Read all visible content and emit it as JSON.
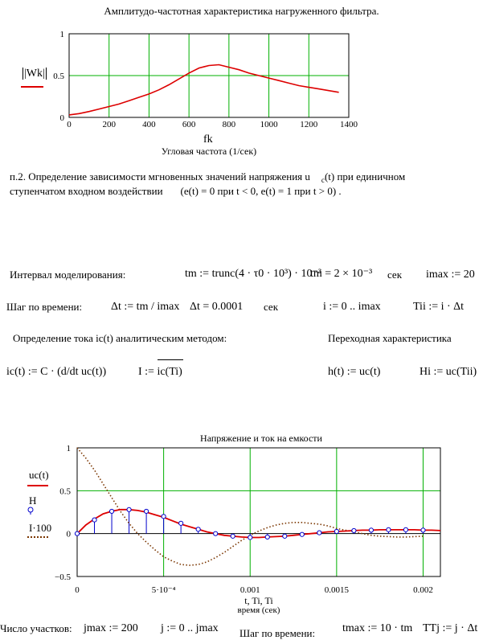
{
  "chart1": {
    "title": "Амплитудо-частотная характеристика нагруженного фильтра.",
    "legend_label": "|Wk|",
    "x_axis_symbol": "fk",
    "xlabel": "Угловая частота (1/сек)",
    "xticks": [
      "0",
      "200",
      "400",
      "600",
      "800",
      "1000",
      "1200",
      "1400"
    ],
    "yticks": [
      "0",
      "0.5",
      "1"
    ]
  },
  "section": {
    "line1": "п.2. Определение зависимости мгновенных значений напряжения u",
    "line1_sub": "c",
    "line1_tail": "(t)  при единичном",
    "line2": "ступенчатом входном воздействии",
    "line2_tail": "(e(t) = 0  при t < 0, e(t) = 1 при t > 0)  ."
  },
  "labels": {
    "interval": "Интервал моделирования:",
    "step": "Шаг по времени:",
    "current_method": "Определение тока ic(t) аналитическим методом:",
    "transient": "Переходная характеристика",
    "sec": "сек",
    "sec2": "сек",
    "parts": "Число участков:",
    "step2": "Шаг по времени:"
  },
  "formulas": {
    "tm_def": "tm := trunc(4 · τ0 · 10³) · 10⁻³",
    "tm_val": "tm = 2 × 10⁻³",
    "imax": "imax := 20",
    "dt_def": "Δt := tm / imax",
    "dt_val": "Δt = 0.0001",
    "i_range": "i := 0 .. imax",
    "ti": "Tii := i · Δt",
    "ic_def": "ic(t) := C · (d/dt uc(t))",
    "i_vec": "I := ic(Ti)",
    "h_def": "h(t) := uc(t)",
    "h_vec": "Hi := uc(Tii)",
    "jmax": "jmax := 200",
    "j_range": "j := 0 .. jmax",
    "tmax": "tmax := 10 · tm",
    "tt": "TTj := j · Δt"
  },
  "chart2": {
    "title": "Напряжение и ток на емкости",
    "legend": [
      "uc(t)",
      "H",
      "I·100"
    ],
    "xticks": [
      "0",
      "5·10⁻⁴",
      "0.001",
      "0.0015",
      "0.002"
    ],
    "yticks": [
      "−0.5",
      "0",
      "0.5",
      "1"
    ],
    "x_axis_symbol": "t, Ti, Ti",
    "xlabel": "время (сек)"
  },
  "chart_data": [
    {
      "type": "line",
      "title": "Амплитудо-частотная характеристика нагруженного фильтра.",
      "xlabel": "Угловая частота (1/сек)",
      "ylabel": "|Wk|",
      "xlim": [
        0,
        1400
      ],
      "ylim": [
        0,
        1
      ],
      "grid": true,
      "series": [
        {
          "name": "|Wk|",
          "color": "#dd0000",
          "x": [
            0,
            50,
            100,
            150,
            200,
            250,
            300,
            350,
            400,
            450,
            500,
            550,
            600,
            650,
            700,
            750,
            800,
            850,
            900,
            950,
            1000,
            1050,
            1100,
            1150,
            1200,
            1250,
            1300,
            1350
          ],
          "y": [
            0.03,
            0.045,
            0.07,
            0.1,
            0.13,
            0.16,
            0.2,
            0.24,
            0.28,
            0.33,
            0.39,
            0.46,
            0.53,
            0.59,
            0.62,
            0.63,
            0.6,
            0.57,
            0.53,
            0.5,
            0.47,
            0.44,
            0.41,
            0.38,
            0.36,
            0.34,
            0.32,
            0.3
          ]
        }
      ]
    },
    {
      "type": "line",
      "title": "Напряжение и ток на емкости",
      "xlabel": "время (сек)",
      "xlim": [
        0,
        0.0021
      ],
      "ylim": [
        -0.5,
        1
      ],
      "grid": true,
      "series": [
        {
          "name": "uc(t)",
          "color": "#dd0000",
          "x": [
            0,
            5e-05,
            0.0001,
            0.00015,
            0.0002,
            0.00025,
            0.0003,
            0.00035,
            0.0004,
            0.00045,
            0.0005,
            0.00055,
            0.0006,
            0.00065,
            0.0007,
            0.00075,
            0.0008,
            0.00085,
            0.0009,
            0.00095,
            0.001,
            0.00105,
            0.0011,
            0.00115,
            0.0012,
            0.00125,
            0.0013,
            0.00135,
            0.0014,
            0.00145,
            0.0015,
            0.00155,
            0.0016,
            0.00165,
            0.0017,
            0.00175,
            0.0018,
            0.00185,
            0.0019,
            0.00195,
            0.002,
            0.00205,
            0.0021
          ],
          "y": [
            0,
            0.1,
            0.17,
            0.23,
            0.26,
            0.28,
            0.28,
            0.27,
            0.25,
            0.22,
            0.19,
            0.15,
            0.11,
            0.08,
            0.05,
            0.02,
            0,
            -0.02,
            -0.03,
            -0.04,
            -0.045,
            -0.045,
            -0.04,
            -0.035,
            -0.03,
            -0.02,
            -0.01,
            0,
            0.01,
            0.02,
            0.025,
            0.03,
            0.035,
            0.04,
            0.04,
            0.045,
            0.045,
            0.045,
            0.045,
            0.045,
            0.04,
            0.04,
            0.035
          ]
        },
        {
          "name": "H",
          "color": "#0000cc",
          "x": [
            0,
            0.0001,
            0.0002,
            0.0003,
            0.0004,
            0.0005,
            0.0006,
            0.0007,
            0.0008,
            0.0009,
            0.001,
            0.0011,
            0.0012,
            0.0013,
            0.0014,
            0.0015,
            0.0016,
            0.0017,
            0.0018,
            0.0019,
            0.002
          ],
          "y": [
            0,
            0.16,
            0.26,
            0.28,
            0.26,
            0.2,
            0.12,
            0.05,
            0,
            -0.03,
            -0.045,
            -0.04,
            -0.03,
            -0.01,
            0.01,
            0.025,
            0.035,
            0.04,
            0.045,
            0.045,
            0.04
          ]
        },
        {
          "name": "I·100",
          "color": "#7a3500",
          "x": [
            0,
            5e-05,
            0.0001,
            0.00015,
            0.0002,
            0.00025,
            0.0003,
            0.00035,
            0.0004,
            0.00045,
            0.0005,
            0.00055,
            0.0006,
            0.00065,
            0.0007,
            0.00075,
            0.0008,
            0.00085,
            0.0009,
            0.00095,
            0.001,
            0.00105,
            0.0011,
            0.00115,
            0.0012,
            0.00125,
            0.0013,
            0.00135,
            0.0014,
            0.00145,
            0.0015,
            0.00155,
            0.0016,
            0.00165,
            0.0017,
            0.00175,
            0.0018,
            0.00185,
            0.0019,
            0.00195,
            0.002
          ],
          "y": [
            1,
            0.88,
            0.74,
            0.58,
            0.42,
            0.26,
            0.12,
            0,
            -0.1,
            -0.19,
            -0.27,
            -0.32,
            -0.36,
            -0.37,
            -0.36,
            -0.33,
            -0.28,
            -0.22,
            -0.15,
            -0.08,
            -0.02,
            0.03,
            0.07,
            0.1,
            0.12,
            0.13,
            0.13,
            0.12,
            0.11,
            0.09,
            0.06,
            0.04,
            0.02,
            0,
            -0.02,
            -0.03,
            -0.035,
            -0.04,
            -0.04,
            -0.035,
            -0.03
          ]
        }
      ]
    }
  ]
}
